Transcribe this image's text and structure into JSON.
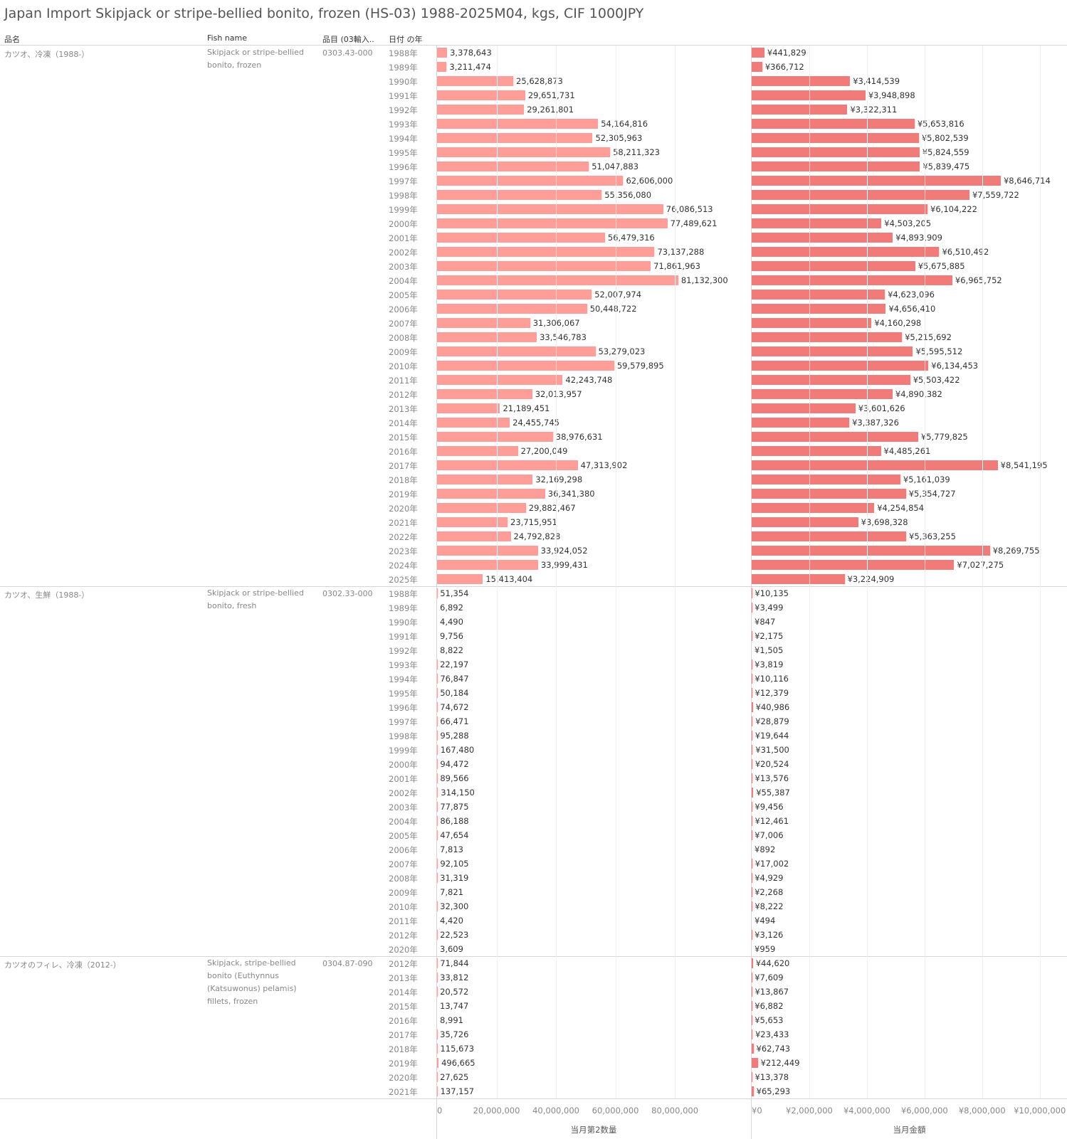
{
  "title": "Japan Import Skipjack or stripe-bellied bonito, frozen (HS-03) 1988-2025M04, kgs, CIF 1000JPY",
  "headers": {
    "name_jp": "品名",
    "fish_name": "Fish name",
    "code": "品目 (03輸入..",
    "year": "日付 の年"
  },
  "colors": {
    "quantity_bar": "#ff9d98",
    "value_bar": "#f07b78"
  },
  "chart_data": [
    {
      "type": "bar",
      "orientation": "horizontal",
      "xlabel": "当月第2数量",
      "xlim": [
        0,
        102000000
      ],
      "ticks": [
        "0",
        "20,000,000",
        "40,000,000",
        "60,000,000",
        "80,000,000"
      ],
      "tick_values": [
        0,
        20000000,
        40000000,
        60000000,
        80000000
      ],
      "grid": true
    },
    {
      "type": "bar",
      "orientation": "horizontal",
      "xlabel": "当月金額",
      "xlim": [
        0,
        10600000
      ],
      "ticks": [
        "¥0",
        "¥2,000,000",
        "¥4,000,000",
        "¥6,000,000",
        "¥8,000,000",
        "¥10,000,000"
      ],
      "tick_values": [
        0,
        2000000,
        4000000,
        6000000,
        8000000,
        10000000
      ],
      "grid": true
    }
  ],
  "groups": [
    {
      "name_jp": "カツオ、冷凍（1988-）",
      "fish_name": "Skipjack or stripe-bellied bonito, frozen",
      "code": "0303.43-000",
      "rows": [
        {
          "year": "1988年",
          "q": 3378643,
          "q_label": "3,378,643",
          "v": 441829,
          "v_label": "¥441,829"
        },
        {
          "year": "1989年",
          "q": 3211474,
          "q_label": "3,211,474",
          "v": 366712,
          "v_label": "¥366,712"
        },
        {
          "year": "1990年",
          "q": 25628873,
          "q_label": "25,628,873",
          "v": 3414539,
          "v_label": "¥3,414,539"
        },
        {
          "year": "1991年",
          "q": 29651731,
          "q_label": "29,651,731",
          "v": 3948898,
          "v_label": "¥3,948,898"
        },
        {
          "year": "1992年",
          "q": 29261801,
          "q_label": "29,261,801",
          "v": 3322311,
          "v_label": "¥3,322,311"
        },
        {
          "year": "1993年",
          "q": 54164816,
          "q_label": "54,164,816",
          "v": 5653816,
          "v_label": "¥5,653,816"
        },
        {
          "year": "1994年",
          "q": 52305963,
          "q_label": "52,305,963",
          "v": 5802539,
          "v_label": "¥5,802,539"
        },
        {
          "year": "1995年",
          "q": 58211323,
          "q_label": "58,211,323",
          "v": 5824559,
          "v_label": "¥5,824,559"
        },
        {
          "year": "1996年",
          "q": 51047883,
          "q_label": "51,047,883",
          "v": 5839475,
          "v_label": "¥5,839,475"
        },
        {
          "year": "1997年",
          "q": 62606000,
          "q_label": "62,606,000",
          "v": 8646714,
          "v_label": "¥8,646,714"
        },
        {
          "year": "1998年",
          "q": 55356080,
          "q_label": "55,356,080",
          "v": 7559722,
          "v_label": "¥7,559,722"
        },
        {
          "year": "1999年",
          "q": 76086513,
          "q_label": "76,086,513",
          "v": 6104222,
          "v_label": "¥6,104,222"
        },
        {
          "year": "2000年",
          "q": 77489621,
          "q_label": "77,489,621",
          "v": 4503205,
          "v_label": "¥4,503,205"
        },
        {
          "year": "2001年",
          "q": 56479316,
          "q_label": "56,479,316",
          "v": 4893909,
          "v_label": "¥4,893,909"
        },
        {
          "year": "2002年",
          "q": 73137288,
          "q_label": "73,137,288",
          "v": 6510492,
          "v_label": "¥6,510,492"
        },
        {
          "year": "2003年",
          "q": 71861963,
          "q_label": "71,861,963",
          "v": 5675885,
          "v_label": "¥5,675,885"
        },
        {
          "year": "2004年",
          "q": 81132300,
          "q_label": "81,132,300",
          "v": 6965752,
          "v_label": "¥6,965,752"
        },
        {
          "year": "2005年",
          "q": 52007974,
          "q_label": "52,007,974",
          "v": 4623096,
          "v_label": "¥4,623,096"
        },
        {
          "year": "2006年",
          "q": 50448722,
          "q_label": "50,448,722",
          "v": 4656410,
          "v_label": "¥4,656,410"
        },
        {
          "year": "2007年",
          "q": 31306067,
          "q_label": "31,306,067",
          "v": 4160298,
          "v_label": "¥4,160,298"
        },
        {
          "year": "2008年",
          "q": 33546783,
          "q_label": "33,546,783",
          "v": 5215692,
          "v_label": "¥5,215,692"
        },
        {
          "year": "2009年",
          "q": 53279023,
          "q_label": "53,279,023",
          "v": 5595512,
          "v_label": "¥5,595,512"
        },
        {
          "year": "2010年",
          "q": 59579895,
          "q_label": "59,579,895",
          "v": 6134453,
          "v_label": "¥6,134,453"
        },
        {
          "year": "2011年",
          "q": 42243748,
          "q_label": "42,243,748",
          "v": 5503422,
          "v_label": "¥5,503,422"
        },
        {
          "year": "2012年",
          "q": 32013957,
          "q_label": "32,013,957",
          "v": 4890382,
          "v_label": "¥4,890,382"
        },
        {
          "year": "2013年",
          "q": 21189451,
          "q_label": "21,189,451",
          "v": 3601626,
          "v_label": "¥3,601,626"
        },
        {
          "year": "2014年",
          "q": 24455745,
          "q_label": "24,455,745",
          "v": 3387326,
          "v_label": "¥3,387,326"
        },
        {
          "year": "2015年",
          "q": 38976631,
          "q_label": "38,976,631",
          "v": 5779825,
          "v_label": "¥5,779,825"
        },
        {
          "year": "2016年",
          "q": 27200049,
          "q_label": "27,200,049",
          "v": 4485261,
          "v_label": "¥4,485,261"
        },
        {
          "year": "2017年",
          "q": 47313902,
          "q_label": "47,313,902",
          "v": 8541195,
          "v_label": "¥8,541,195"
        },
        {
          "year": "2018年",
          "q": 32169298,
          "q_label": "32,169,298",
          "v": 5161039,
          "v_label": "¥5,161,039"
        },
        {
          "year": "2019年",
          "q": 36341380,
          "q_label": "36,341,380",
          "v": 5354727,
          "v_label": "¥5,354,727"
        },
        {
          "year": "2020年",
          "q": 29882467,
          "q_label": "29,882,467",
          "v": 4254854,
          "v_label": "¥4,254,854"
        },
        {
          "year": "2021年",
          "q": 23715951,
          "q_label": "23,715,951",
          "v": 3698328,
          "v_label": "¥3,698,328"
        },
        {
          "year": "2022年",
          "q": 24792828,
          "q_label": "24,792,828",
          "v": 5363255,
          "v_label": "¥5,363,255"
        },
        {
          "year": "2023年",
          "q": 33924052,
          "q_label": "33,924,052",
          "v": 8269755,
          "v_label": "¥8,269,755"
        },
        {
          "year": "2024年",
          "q": 33999431,
          "q_label": "33,999,431",
          "v": 7027275,
          "v_label": "¥7,027,275"
        },
        {
          "year": "2025年",
          "q": 15413404,
          "q_label": "15,413,404",
          "v": 3224909,
          "v_label": "¥3,224,909"
        }
      ]
    },
    {
      "name_jp": "カツオ、生鮮（1988-）",
      "fish_name": "Skipjack or stripe-bellied bonito, fresh",
      "code": "0302.33-000",
      "rows": [
        {
          "year": "1988年",
          "q": 51354,
          "q_label": "51,354",
          "v": 10135,
          "v_label": "¥10,135"
        },
        {
          "year": "1989年",
          "q": 6892,
          "q_label": "6,892",
          "v": 3499,
          "v_label": "¥3,499"
        },
        {
          "year": "1990年",
          "q": 4490,
          "q_label": "4,490",
          "v": 847,
          "v_label": "¥847"
        },
        {
          "year": "1991年",
          "q": 9756,
          "q_label": "9,756",
          "v": 2175,
          "v_label": "¥2,175"
        },
        {
          "year": "1992年",
          "q": 8822,
          "q_label": "8,822",
          "v": 1505,
          "v_label": "¥1,505"
        },
        {
          "year": "1993年",
          "q": 22197,
          "q_label": "22,197",
          "v": 3819,
          "v_label": "¥3,819"
        },
        {
          "year": "1994年",
          "q": 76847,
          "q_label": "76,847",
          "v": 10116,
          "v_label": "¥10,116"
        },
        {
          "year": "1995年",
          "q": 50184,
          "q_label": "50,184",
          "v": 12379,
          "v_label": "¥12,379"
        },
        {
          "year": "1996年",
          "q": 74672,
          "q_label": "74,672",
          "v": 40986,
          "v_label": "¥40,986"
        },
        {
          "year": "1997年",
          "q": 66471,
          "q_label": "66,471",
          "v": 28879,
          "v_label": "¥28,879"
        },
        {
          "year": "1998年",
          "q": 95288,
          "q_label": "95,288",
          "v": 19644,
          "v_label": "¥19,644"
        },
        {
          "year": "1999年",
          "q": 167480,
          "q_label": "167,480",
          "v": 31500,
          "v_label": "¥31,500"
        },
        {
          "year": "2000年",
          "q": 94472,
          "q_label": "94,472",
          "v": 20524,
          "v_label": "¥20,524"
        },
        {
          "year": "2001年",
          "q": 89566,
          "q_label": "89,566",
          "v": 13576,
          "v_label": "¥13,576"
        },
        {
          "year": "2002年",
          "q": 314150,
          "q_label": "314,150",
          "v": 55387,
          "v_label": "¥55,387"
        },
        {
          "year": "2003年",
          "q": 77875,
          "q_label": "77,875",
          "v": 9456,
          "v_label": "¥9,456"
        },
        {
          "year": "2004年",
          "q": 86188,
          "q_label": "86,188",
          "v": 12461,
          "v_label": "¥12,461"
        },
        {
          "year": "2005年",
          "q": 47654,
          "q_label": "47,654",
          "v": 7006,
          "v_label": "¥7,006"
        },
        {
          "year": "2006年",
          "q": 7813,
          "q_label": "7,813",
          "v": 892,
          "v_label": "¥892"
        },
        {
          "year": "2007年",
          "q": 92105,
          "q_label": "92,105",
          "v": 17002,
          "v_label": "¥17,002"
        },
        {
          "year": "2008年",
          "q": 31319,
          "q_label": "31,319",
          "v": 4929,
          "v_label": "¥4,929"
        },
        {
          "year": "2009年",
          "q": 7821,
          "q_label": "7,821",
          "v": 2268,
          "v_label": "¥2,268"
        },
        {
          "year": "2010年",
          "q": 32300,
          "q_label": "32,300",
          "v": 8222,
          "v_label": "¥8,222"
        },
        {
          "year": "2011年",
          "q": 4420,
          "q_label": "4,420",
          "v": 494,
          "v_label": "¥494"
        },
        {
          "year": "2012年",
          "q": 22523,
          "q_label": "22,523",
          "v": 3126,
          "v_label": "¥3,126"
        },
        {
          "year": "2020年",
          "q": 3609,
          "q_label": "3,609",
          "v": 959,
          "v_label": "¥959"
        }
      ]
    },
    {
      "name_jp": "カツオのフィレ、冷凍（2012-）",
      "fish_name": "Skipjack, stripe-bellied bonito (Euthynnus (Katsuwonus) pelamis) fillets, frozen",
      "code": "0304.87-090",
      "rows": [
        {
          "year": "2012年",
          "q": 71844,
          "q_label": "71,844",
          "v": 44620,
          "v_label": "¥44,620"
        },
        {
          "year": "2013年",
          "q": 33812,
          "q_label": "33,812",
          "v": 7609,
          "v_label": "¥7,609"
        },
        {
          "year": "2014年",
          "q": 20572,
          "q_label": "20,572",
          "v": 13867,
          "v_label": "¥13,867"
        },
        {
          "year": "2015年",
          "q": 13747,
          "q_label": "13,747",
          "v": 6882,
          "v_label": "¥6,882"
        },
        {
          "year": "2016年",
          "q": 8991,
          "q_label": "8,991",
          "v": 5653,
          "v_label": "¥5,653"
        },
        {
          "year": "2017年",
          "q": 35726,
          "q_label": "35,726",
          "v": 23433,
          "v_label": "¥23,433"
        },
        {
          "year": "2018年",
          "q": 115673,
          "q_label": "115,673",
          "v": 62743,
          "v_label": "¥62,743"
        },
        {
          "year": "2019年",
          "q": 496665,
          "q_label": "496,665",
          "v": 212449,
          "v_label": "¥212,449"
        },
        {
          "year": "2020年",
          "q": 27625,
          "q_label": "27,625",
          "v": 13378,
          "v_label": "¥13,378"
        },
        {
          "year": "2021年",
          "q": 137157,
          "q_label": "137,157",
          "v": 65293,
          "v_label": "¥65,293"
        }
      ]
    }
  ]
}
